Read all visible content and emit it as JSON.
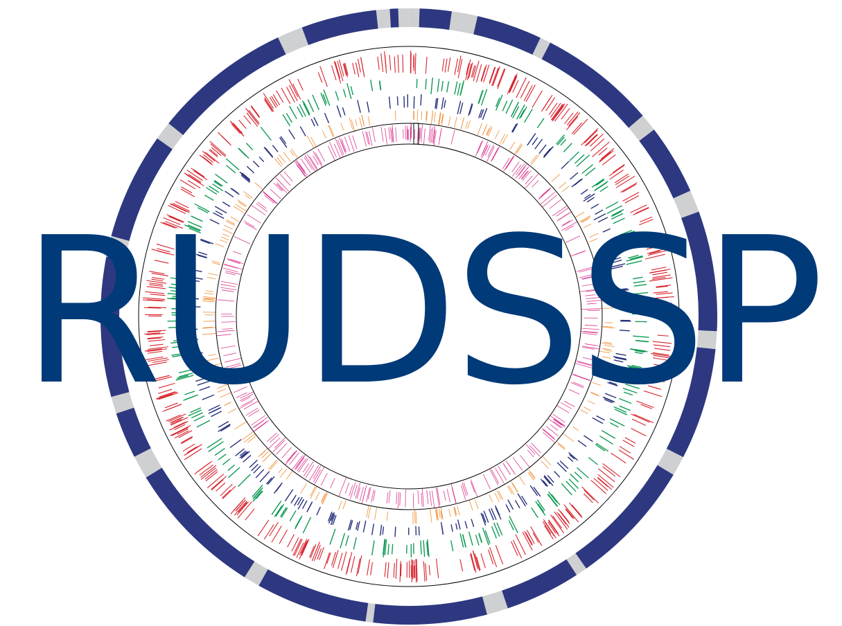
{
  "logo": {
    "text": "RUDSSP",
    "text_color": "#003a78"
  },
  "graphic": {
    "type": "circular-genome-map",
    "colors": {
      "outer_block": "#2e3880",
      "outer_gap": "#cfd0d2",
      "feature_red": "#d6222b",
      "feature_green": "#109a55",
      "feature_blue": "#26317a",
      "feature_orange": "#ef8a2c",
      "feature_pink": "#d9398f",
      "ring_line": "#000000"
    }
  }
}
